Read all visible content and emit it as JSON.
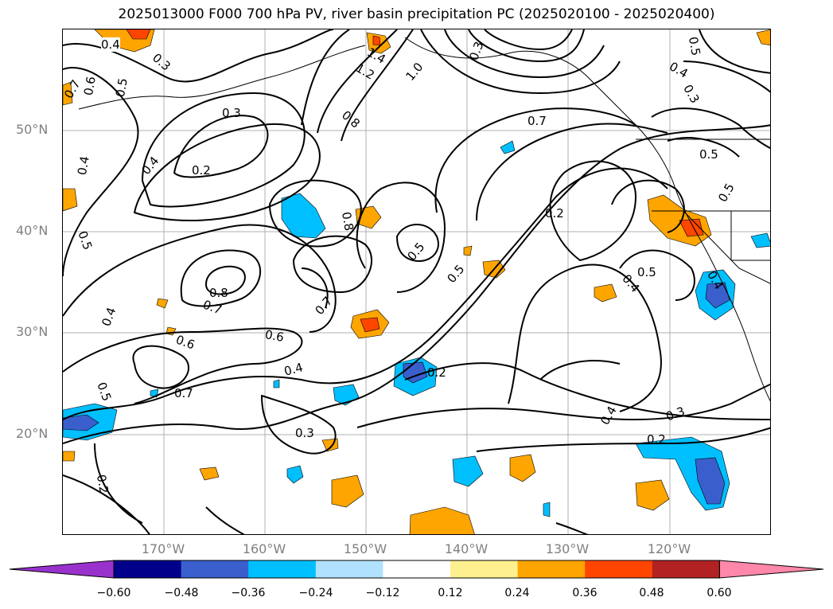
{
  "title": "2025013000 F000 700 hPa PV, river basin precipitation PC (2025020100 - 2025020400)",
  "lat_ticks": [
    "50°N",
    "40°N",
    "30°N",
    "20°N"
  ],
  "lon_ticks": [
    "170°W",
    "160°W",
    "150°W",
    "140°W",
    "130°W",
    "120°W"
  ],
  "contour_labels": [
    "0.4",
    "0.3",
    "1.4",
    "1.2",
    "1.0",
    "0.3",
    "0.5",
    "0.4",
    "0.3",
    "0.7",
    "0.6",
    "0.5",
    "0.3",
    "0.8",
    "0.7",
    "0.5",
    "0.4",
    "0.2",
    "0.5",
    "0.4",
    "0.8",
    "0.2",
    "0.5",
    "0.5",
    "0.5",
    "0.8",
    "0.7",
    "0.7",
    "0.4",
    "0.6",
    "0.6",
    "0.4",
    "0.5",
    "0.7",
    "0.4",
    "0.5",
    "0.4",
    "0.2",
    "0.3",
    "0.4",
    "0.2",
    "0.3",
    "0.2"
  ],
  "colorbar": {
    "ticks": [
      "−0.60",
      "−0.48",
      "−0.36",
      "−0.24",
      "−0.12",
      "0.12",
      "0.24",
      "0.36",
      "0.48",
      "0.60"
    ],
    "colors": [
      "#9932cc",
      "#00008b",
      "#3a5fcd",
      "#00bfff",
      "#b0e2ff",
      "#ffffff",
      "#fff08f",
      "#ffa500",
      "#ff4500",
      "#b22222",
      "#ff88aa"
    ]
  },
  "legend": {
    "negative_colors": [
      "#00bfff",
      "#3a5fcd"
    ],
    "positive_colors": [
      "#fff08f",
      "#ffa500",
      "#ff4500"
    ]
  }
}
